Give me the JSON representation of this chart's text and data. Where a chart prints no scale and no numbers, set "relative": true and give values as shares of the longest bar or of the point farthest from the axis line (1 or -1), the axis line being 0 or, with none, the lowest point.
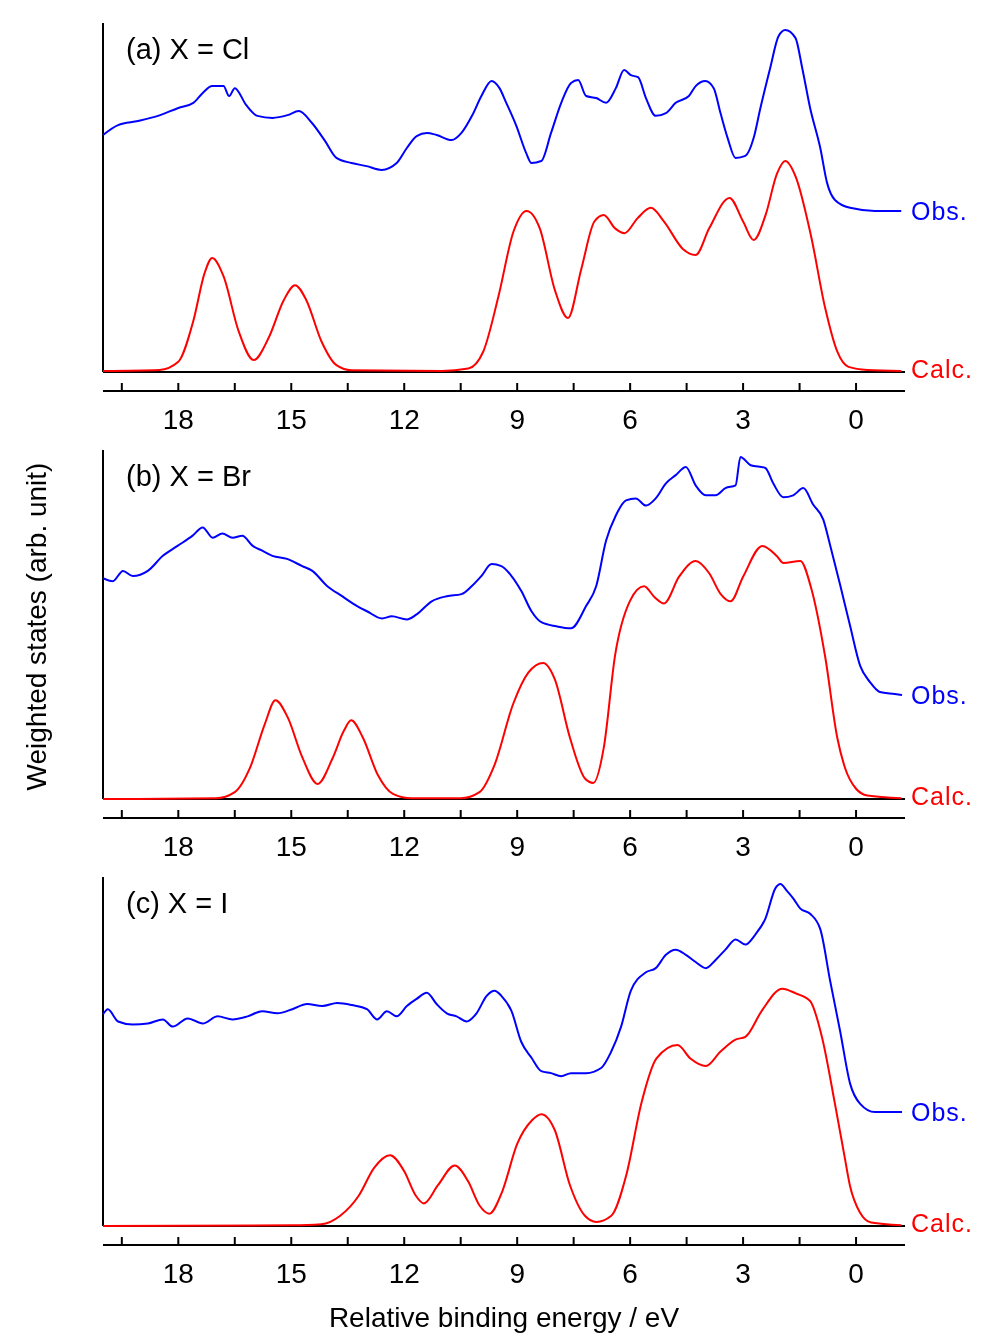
{
  "chart_data": [
    {
      "type": "line",
      "title": "(a) X = Cl",
      "relative": true,
      "xlim": [
        20,
        -1.3
      ],
      "xticks": [
        {
          "value": 19.5,
          "label": null
        },
        18,
        {
          "value": 16.5,
          "label": null
        },
        15,
        {
          "value": 13.5,
          "label": null
        },
        12,
        {
          "value": 10.5,
          "label": null
        },
        9,
        {
          "value": 7.5,
          "label": null
        },
        6,
        {
          "value": 4.5,
          "label": null
        },
        3,
        {
          "value": 1.5,
          "label": null
        },
        0
      ],
      "series": [
        {
          "name": "Obs.",
          "color": "#0000ff",
          "x": [
            20.0,
            19.6,
            19.07,
            18.54,
            18.0,
            17.6,
            17.35,
            17.1,
            16.8,
            16.65,
            16.5,
            16.2,
            15.9,
            15.5,
            15.1,
            14.8,
            14.45,
            14.1,
            13.8,
            13.4,
            13.0,
            12.6,
            12.2,
            11.93,
            11.67,
            11.4,
            11.14,
            10.74,
            10.48,
            10.2,
            9.95,
            9.68,
            9.47,
            9.29,
            9.02,
            8.76,
            8.62,
            8.36,
            8.1,
            7.83,
            7.57,
            7.38,
            7.17,
            6.9,
            6.64,
            6.38,
            6.16,
            5.98,
            5.79,
            5.58,
            5.32,
            5.05,
            4.79,
            4.44,
            4.26,
            4.0,
            3.78,
            3.6,
            3.41,
            3.2,
            2.94,
            2.72,
            2.54,
            2.28,
            2.06,
            1.88,
            1.61,
            1.43,
            1.22,
            0.95,
            0.77,
            0.56,
            0.16,
            -0.5,
            -1.2
          ],
          "values": [
            0.693,
            0.722,
            0.734,
            0.749,
            0.772,
            0.787,
            0.816,
            0.836,
            0.836,
            0.807,
            0.83,
            0.781,
            0.749,
            0.743,
            0.751,
            0.763,
            0.728,
            0.675,
            0.626,
            0.611,
            0.602,
            0.591,
            0.611,
            0.655,
            0.69,
            0.699,
            0.693,
            0.678,
            0.699,
            0.749,
            0.807,
            0.851,
            0.83,
            0.787,
            0.719,
            0.64,
            0.611,
            0.617,
            0.699,
            0.787,
            0.845,
            0.854,
            0.807,
            0.801,
            0.787,
            0.83,
            0.883,
            0.868,
            0.862,
            0.801,
            0.749,
            0.757,
            0.787,
            0.807,
            0.836,
            0.851,
            0.83,
            0.757,
            0.684,
            0.626,
            0.632,
            0.684,
            0.772,
            0.889,
            0.982,
            1.0,
            0.977,
            0.889,
            0.772,
            0.655,
            0.553,
            0.503,
            0.48,
            0.471,
            0.471
          ]
        },
        {
          "name": "Calc.",
          "color": "#ff0000",
          "x": [
            20,
            18.5,
            18.0,
            17.6,
            17.3,
            17.1,
            16.8,
            16.4,
            16.0,
            15.6,
            15.2,
            14.9,
            14.6,
            14.2,
            13.8,
            13.4,
            11,
            10.3,
            9.9,
            9.5,
            9.1,
            8.75,
            8.4,
            8.0,
            7.65,
            7.3,
            6.95,
            6.7,
            6.4,
            6.15,
            5.8,
            5.45,
            5.1,
            4.6,
            4.26,
            3.9,
            3.36,
            3.0,
            2.72,
            2.4,
            2.1,
            1.88,
            1.6,
            1.2,
            0.82,
            0.5,
            0.2,
            -0.3,
            -1.2
          ],
          "values": [
            0.003,
            0.006,
            0.03,
            0.15,
            0.29,
            0.333,
            0.28,
            0.12,
            0.035,
            0.1,
            0.21,
            0.254,
            0.21,
            0.09,
            0.02,
            0.005,
            0.003,
            0.01,
            0.06,
            0.22,
            0.41,
            0.471,
            0.42,
            0.24,
            0.158,
            0.3,
            0.44,
            0.459,
            0.42,
            0.406,
            0.45,
            0.48,
            0.44,
            0.36,
            0.342,
            0.42,
            0.509,
            0.44,
            0.386,
            0.46,
            0.58,
            0.617,
            0.57,
            0.4,
            0.187,
            0.06,
            0.015,
            0.006,
            0.003
          ]
        }
      ],
      "grid": false
    },
    {
      "type": "line",
      "title": "(b) X = Br",
      "ylabel": "Weighted states (arb. unit)",
      "relative": true,
      "xlim": [
        20,
        -1.3
      ],
      "xticks": [
        {
          "value": 19.5,
          "label": null
        },
        18,
        {
          "value": 16.5,
          "label": null
        },
        15,
        {
          "value": 13.5,
          "label": null
        },
        12,
        {
          "value": 10.5,
          "label": null
        },
        9,
        {
          "value": 7.5,
          "label": null
        },
        6,
        {
          "value": 4.5,
          "label": null
        },
        3,
        {
          "value": 1.5,
          "label": null
        },
        0
      ],
      "series": [
        {
          "name": "Obs.",
          "color": "#0000ff",
          "x": [
            20.0,
            19.74,
            19.47,
            19.21,
            18.81,
            18.41,
            18.02,
            17.62,
            17.35,
            17.09,
            16.83,
            16.56,
            16.3,
            16.03,
            15.77,
            15.5,
            15.11,
            14.71,
            14.44,
            14.05,
            13.65,
            13.25,
            12.99,
            12.59,
            12.33,
            11.93,
            11.67,
            11.27,
            10.87,
            10.48,
            10.21,
            9.95,
            9.68,
            9.42,
            9.15,
            8.89,
            8.62,
            8.36,
            7.96,
            7.57,
            7.17,
            6.9,
            6.64,
            6.38,
            6.11,
            5.85,
            5.58,
            5.32,
            5.05,
            4.79,
            4.52,
            4.26,
            3.99,
            3.73,
            3.47,
            3.2,
            3.07,
            2.8,
            2.41,
            2.2,
            1.93,
            1.67,
            1.4,
            1.14,
            0.87,
            0.69,
            0.42,
            0.16,
            -0.11,
            -0.37,
            -0.63,
            -1.03,
            -1.22
          ],
          "values": [
            0.646,
            0.637,
            0.667,
            0.652,
            0.667,
            0.711,
            0.74,
            0.77,
            0.794,
            0.764,
            0.776,
            0.764,
            0.77,
            0.741,
            0.726,
            0.711,
            0.702,
            0.681,
            0.667,
            0.623,
            0.593,
            0.564,
            0.549,
            0.528,
            0.534,
            0.525,
            0.54,
            0.578,
            0.593,
            0.599,
            0.622,
            0.652,
            0.687,
            0.681,
            0.652,
            0.608,
            0.549,
            0.517,
            0.505,
            0.499,
            0.564,
            0.623,
            0.755,
            0.829,
            0.873,
            0.879,
            0.858,
            0.879,
            0.923,
            0.947,
            0.971,
            0.917,
            0.888,
            0.888,
            0.909,
            0.917,
            1.0,
            0.976,
            0.968,
            0.923,
            0.882,
            0.888,
            0.909,
            0.861,
            0.817,
            0.743,
            0.625,
            0.507,
            0.389,
            0.342,
            0.313,
            0.307,
            0.304
          ]
        },
        {
          "name": "Calc.",
          "color": "#ff0000",
          "x": [
            20,
            17,
            16.5,
            16.1,
            15.7,
            15.42,
            15.1,
            14.7,
            14.3,
            13.9,
            13.6,
            13.41,
            13.1,
            12.7,
            12.3,
            11.8,
            10.5,
            10.0,
            9.6,
            9.1,
            8.7,
            8.31,
            8.0,
            7.6,
            7.2,
            6.98,
            6.7,
            6.4,
            6.0,
            5.63,
            5.35,
            5.1,
            4.7,
            4.26,
            3.9,
            3.6,
            3.33,
            3.0,
            2.49,
            2.1,
            1.93,
            1.48,
            1.2,
            0.82,
            0.5,
            0.29,
            0.0,
            -0.3,
            -1.2
          ],
          "values": [
            0,
            0.002,
            0.02,
            0.09,
            0.22,
            0.289,
            0.24,
            0.12,
            0.044,
            0.12,
            0.2,
            0.23,
            0.18,
            0.07,
            0.015,
            0.002,
            0.002,
            0.02,
            0.1,
            0.28,
            0.37,
            0.398,
            0.35,
            0.18,
            0.06,
            0.047,
            0.15,
            0.42,
            0.58,
            0.622,
            0.59,
            0.572,
            0.65,
            0.696,
            0.66,
            0.6,
            0.578,
            0.65,
            0.74,
            0.71,
            0.69,
            0.696,
            0.62,
            0.416,
            0.18,
            0.09,
            0.03,
            0.01,
            0.002
          ]
        }
      ],
      "grid": false
    },
    {
      "type": "line",
      "title": "(c) X = I",
      "xlabel": "Relative binding energy / eV",
      "relative": true,
      "xlim": [
        20,
        -1.3
      ],
      "xticks": [
        {
          "value": 19.5,
          "label": null
        },
        18,
        {
          "value": 16.5,
          "label": null
        },
        15,
        {
          "value": 13.5,
          "label": null
        },
        12,
        {
          "value": 10.5,
          "label": null
        },
        9,
        {
          "value": 7.5,
          "label": null
        },
        6,
        {
          "value": 4.5,
          "label": null
        },
        3,
        {
          "value": 1.5,
          "label": null
        },
        0
      ],
      "series": [
        {
          "name": "Obs.",
          "color": "#0000ff",
          "x": [
            20.0,
            19.87,
            19.6,
            19.21,
            18.81,
            18.41,
            18.15,
            17.75,
            17.35,
            16.96,
            16.56,
            16.16,
            15.77,
            15.37,
            14.97,
            14.58,
            14.18,
            13.78,
            13.39,
            12.99,
            12.72,
            12.46,
            12.2,
            11.93,
            11.67,
            11.4,
            11.14,
            10.87,
            10.61,
            10.34,
            10.08,
            9.81,
            9.6,
            9.42,
            9.15,
            8.89,
            8.62,
            8.36,
            8.1,
            7.83,
            7.57,
            7.17,
            6.77,
            6.51,
            6.24,
            5.98,
            5.58,
            5.32,
            5.05,
            4.79,
            4.52,
            4.26,
            3.99,
            3.73,
            3.47,
            3.2,
            2.94,
            2.67,
            2.41,
            2.14,
            2.01,
            1.83,
            1.67,
            1.48,
            1.22,
            0.95,
            0.69,
            0.42,
            0.16,
            -0.11,
            -0.5,
            -1.22
          ],
          "values": [
            0.619,
            0.634,
            0.598,
            0.589,
            0.592,
            0.604,
            0.583,
            0.607,
            0.592,
            0.613,
            0.604,
            0.613,
            0.628,
            0.622,
            0.634,
            0.649,
            0.643,
            0.652,
            0.646,
            0.634,
            0.604,
            0.628,
            0.613,
            0.643,
            0.664,
            0.682,
            0.649,
            0.622,
            0.613,
            0.598,
            0.622,
            0.673,
            0.688,
            0.673,
            0.628,
            0.538,
            0.492,
            0.453,
            0.447,
            0.438,
            0.447,
            0.447,
            0.462,
            0.508,
            0.583,
            0.688,
            0.742,
            0.754,
            0.793,
            0.808,
            0.793,
            0.772,
            0.754,
            0.778,
            0.808,
            0.838,
            0.823,
            0.853,
            0.898,
            0.988,
            1.0,
            0.979,
            0.958,
            0.928,
            0.913,
            0.868,
            0.718,
            0.568,
            0.417,
            0.357,
            0.333,
            0.333
          ]
        },
        {
          "name": "Calc.",
          "color": "#ff0000",
          "x": [
            20,
            15,
            14.2,
            13.7,
            13.2,
            12.8,
            12.38,
            12.0,
            11.7,
            11.48,
            11.1,
            10.66,
            10.3,
            10.0,
            9.74,
            9.4,
            9.0,
            8.6,
            8.36,
            8.0,
            7.6,
            7.2,
            6.9,
            6.5,
            6.1,
            5.7,
            5.3,
            4.74,
            4.4,
            3.99,
            3.6,
            3.2,
            2.94,
            2.5,
            1.96,
            1.6,
            1.22,
            0.9,
            0.56,
            0.3,
            0.16,
            -0.1,
            -0.4,
            -1.2
          ],
          "values": [
            0,
            0.002,
            0.005,
            0.03,
            0.09,
            0.17,
            0.207,
            0.16,
            0.09,
            0.066,
            0.12,
            0.177,
            0.13,
            0.06,
            0.036,
            0.1,
            0.24,
            0.31,
            0.327,
            0.28,
            0.12,
            0.03,
            0.012,
            0.03,
            0.15,
            0.36,
            0.49,
            0.529,
            0.49,
            0.468,
            0.51,
            0.545,
            0.553,
            0.63,
            0.694,
            0.68,
            0.658,
            0.55,
            0.357,
            0.2,
            0.117,
            0.04,
            0.01,
            0.002
          ]
        }
      ],
      "grid": false
    }
  ]
}
